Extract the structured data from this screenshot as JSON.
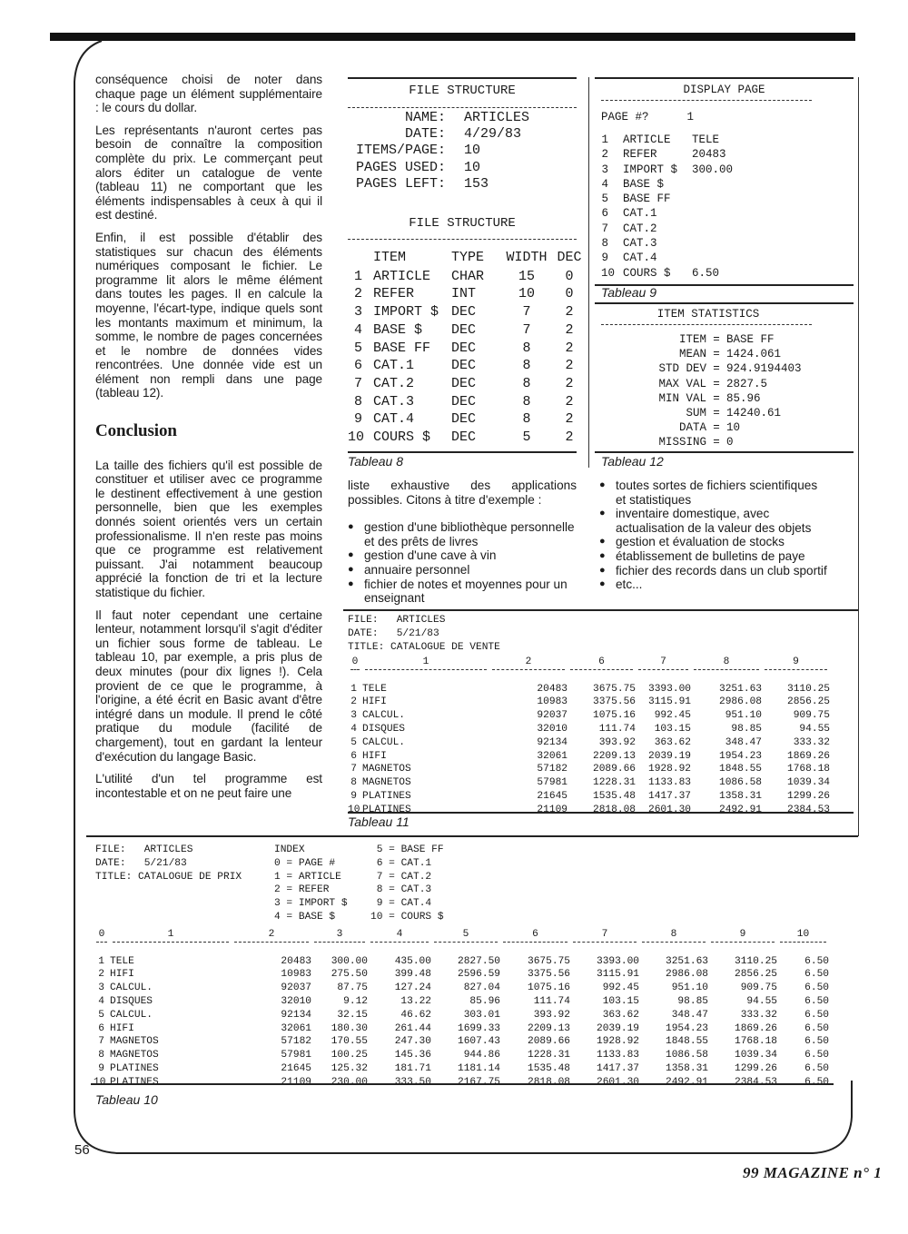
{
  "left_column": {
    "paragraphs_a": [
      "conséquence choisi de noter dans chaque page un élément supplémentaire : le cours du dollar.",
      "Les représentants n'auront certes pas besoin de connaître la composition complète du prix. Le commerçant peut alors éditer un catalogue de vente (tableau 11) ne comportant que les éléments indispensables à ceux à qui il est destiné.",
      "Enfin, il est possible d'établir des statistiques sur chacun des éléments numériques composant le fichier. Le programme lit alors le même élément dans toutes les pages. Il en calcule la moyenne, l'écart-type, indique quels sont les montants maximum et minimum, la somme, le nombre de pages concernées et le nombre de données vides rencontrées. Une donnée vide est un élément non rempli dans une page (tableau 12)."
    ],
    "heading": "Conclusion",
    "paragraphs_b": [
      "La taille des fichiers qu'il est possible de constituer et utiliser avec ce programme le destinent effectivement à une gestion personnelle, bien que les exemples donnés soient orientés vers un certain professionalisme. Il n'en reste pas moins que ce programme est relativement puissant. J'ai notamment beaucoup apprécié la fonction de tri et la lecture statistique du fichier.",
      "Il faut noter cependant une certaine lenteur, notamment lorsqu'il s'agit d'éditer un fichier sous forme de tableau. Le tableau 10, par exemple, a pris plus de deux minutes (pour dix lignes !). Cela provient de ce que le programme, à l'origine, a été écrit en Basic avant d'être intégré dans un module. Il prend le côté pratique du module (facilité de chargement), tout en gardant la lenteur d'exécution du langage Basic.",
      "L'utilité d'un tel programme est incontestable et on ne peut faire une"
    ]
  },
  "table8": {
    "title": "FILE STRUCTURE",
    "meta": [
      {
        "label": "NAME:",
        "value": "ARTICLES"
      },
      {
        "label": "DATE:",
        "value": "4/29/83"
      },
      {
        "label": "ITEMS/PAGE:",
        "value": "10"
      },
      {
        "label": "PAGES USED:",
        "value": "10"
      },
      {
        "label": "PAGES LEFT:",
        "value": "153"
      }
    ],
    "title2": "FILE STRUCTURE",
    "headers": [
      "",
      "ITEM",
      "TYPE",
      "WIDTH",
      "DEC"
    ],
    "rows": [
      [
        "1",
        "ARTICLE",
        "CHAR",
        "15",
        "0"
      ],
      [
        "2",
        "REFER",
        "INT",
        "10",
        "0"
      ],
      [
        "3",
        "IMPORT $",
        "DEC",
        "7",
        "2"
      ],
      [
        "4",
        "BASE $",
        "DEC",
        "7",
        "2"
      ],
      [
        "5",
        "BASE FF",
        "DEC",
        "8",
        "2"
      ],
      [
        "6",
        "CAT.1",
        "DEC",
        "8",
        "2"
      ],
      [
        "7",
        "CAT.2",
        "DEC",
        "8",
        "2"
      ],
      [
        "8",
        "CAT.3",
        "DEC",
        "8",
        "2"
      ],
      [
        "9",
        "CAT.4",
        "DEC",
        "8",
        "2"
      ],
      [
        "10",
        "COURS $",
        "DEC",
        "5",
        "2"
      ]
    ],
    "caption": "Tableau 8"
  },
  "table9": {
    "title": "DISPLAY PAGE",
    "page_label": "PAGE #?",
    "page_value": "1",
    "rows": [
      [
        "1",
        "ARTICLE",
        "TELE"
      ],
      [
        "2",
        "REFER",
        "20483"
      ],
      [
        "3",
        "IMPORT $",
        "300.00"
      ],
      [
        "4",
        "BASE $",
        ""
      ],
      [
        "5",
        "BASE FF",
        ""
      ],
      [
        "6",
        "CAT.1",
        ""
      ],
      [
        "7",
        "CAT.2",
        ""
      ],
      [
        "8",
        "CAT.3",
        ""
      ],
      [
        "9",
        "CAT.4",
        ""
      ],
      [
        "10",
        "COURS $",
        "6.50"
      ]
    ],
    "caption": "Tableau 9"
  },
  "table12": {
    "title": "ITEM STATISTICS",
    "rows": [
      [
        "ITEM",
        "BASE FF"
      ],
      [
        "MEAN",
        "1424.061"
      ],
      [
        "STD DEV",
        "924.9194403"
      ],
      [
        "MAX VAL",
        "2827.5"
      ],
      [
        "MIN VAL",
        "85.96"
      ],
      [
        "SUM",
        "14240.61"
      ],
      [
        "DATA",
        "10"
      ],
      [
        "MISSING",
        "0"
      ]
    ],
    "eq": "=",
    "caption": "Tableau 12"
  },
  "middle_text": {
    "intro": "liste exhaustive des applications possibles. Citons à titre d'exemple :",
    "bullets": [
      "gestion d'une bibliothèque personnelle et des prêts de livres",
      "gestion d'une cave à vin",
      "annuaire personnel",
      "fichier de notes et moyennes pour un enseignant"
    ]
  },
  "right_text": {
    "bullets": [
      "toutes sortes de fichiers scientifiques et statistiques",
      "inventaire domestique, avec actualisation de la valeur des objets",
      "gestion et évaluation de stocks",
      "établissement de bulletins de paye",
      "fichier des records dans un club sportif",
      "etc..."
    ]
  },
  "table11": {
    "meta": [
      "FILE:   ARTICLES",
      "DATE:   5/21/83",
      "TITLE: CATALOGUE DE VENTE"
    ],
    "headers": [
      "0",
      "1",
      "2",
      "6",
      "7",
      "8",
      "9"
    ],
    "rows": [
      [
        "1",
        "TELE",
        "20483",
        "3675.75",
        "3393.00",
        "3251.63",
        "3110.25"
      ],
      [
        "2",
        "HIFI",
        "10983",
        "3375.56",
        "3115.91",
        "2986.08",
        "2856.25"
      ],
      [
        "3",
        "CALCUL.",
        "92037",
        "1075.16",
        "992.45",
        "951.10",
        "909.75"
      ],
      [
        "4",
        "DISQUES",
        "32010",
        "111.74",
        "103.15",
        "98.85",
        "94.55"
      ],
      [
        "5",
        "CALCUL.",
        "92134",
        "393.92",
        "363.62",
        "348.47",
        "333.32"
      ],
      [
        "6",
        "HIFI",
        "32061",
        "2209.13",
        "2039.19",
        "1954.23",
        "1869.26"
      ],
      [
        "7",
        "MAGNETOS",
        "57182",
        "2089.66",
        "1928.92",
        "1848.55",
        "1768.18"
      ],
      [
        "8",
        "MAGNETOS",
        "57981",
        "1228.31",
        "1133.83",
        "1086.58",
        "1039.34"
      ],
      [
        "9",
        "PLATINES",
        "21645",
        "1535.48",
        "1417.37",
        "1358.31",
        "1299.26"
      ],
      [
        "10",
        "PLATINES",
        "21109",
        "2818.08",
        "2601.30",
        "2492.91",
        "2384.53"
      ]
    ],
    "caption": "Tableau 11"
  },
  "table10": {
    "meta": [
      "FILE:   ARTICLES",
      "DATE:   5/21/83",
      "TITLE: CATALOGUE DE PRIX"
    ],
    "index_a": [
      "INDEX",
      "0 = PAGE #",
      "1 = ARTICLE",
      "2 = REFER",
      "3 = IMPORT $",
      "4 = BASE $"
    ],
    "index_b": [
      " 5 = BASE FF",
      " 6 = CAT.1",
      " 7 = CAT.2",
      " 8 = CAT.3",
      " 9 = CAT.4",
      "10 = COURS $"
    ],
    "headers": [
      "0",
      "1",
      "2",
      "3",
      "4",
      "5",
      "6",
      "7",
      "8",
      "9",
      "10"
    ],
    "rows": [
      [
        "1",
        "TELE",
        "20483",
        "300.00",
        "435.00",
        "2827.50",
        "3675.75",
        "3393.00",
        "3251.63",
        "3110.25",
        "6.50"
      ],
      [
        "2",
        "HIFI",
        "10983",
        "275.50",
        "399.48",
        "2596.59",
        "3375.56",
        "3115.91",
        "2986.08",
        "2856.25",
        "6.50"
      ],
      [
        "3",
        "CALCUL.",
        "92037",
        "87.75",
        "127.24",
        "827.04",
        "1075.16",
        "992.45",
        "951.10",
        "909.75",
        "6.50"
      ],
      [
        "4",
        "DISQUES",
        "32010",
        "9.12",
        "13.22",
        "85.96",
        "111.74",
        "103.15",
        "98.85",
        "94.55",
        "6.50"
      ],
      [
        "5",
        "CALCUL.",
        "92134",
        "32.15",
        "46.62",
        "303.01",
        "393.92",
        "363.62",
        "348.47",
        "333.32",
        "6.50"
      ],
      [
        "6",
        "HIFI",
        "32061",
        "180.30",
        "261.44",
        "1699.33",
        "2209.13",
        "2039.19",
        "1954.23",
        "1869.26",
        "6.50"
      ],
      [
        "7",
        "MAGNETOS",
        "57182",
        "170.55",
        "247.30",
        "1607.43",
        "2089.66",
        "1928.92",
        "1848.55",
        "1768.18",
        "6.50"
      ],
      [
        "8",
        "MAGNETOS",
        "57981",
        "100.25",
        "145.36",
        "944.86",
        "1228.31",
        "1133.83",
        "1086.58",
        "1039.34",
        "6.50"
      ],
      [
        "9",
        "PLATINES",
        "21645",
        "125.32",
        "181.71",
        "1181.14",
        "1535.48",
        "1417.37",
        "1358.31",
        "1299.26",
        "6.50"
      ],
      [
        "10",
        "PLATINES",
        "21109",
        "230.00",
        "333.50",
        "2167.75",
        "2818.08",
        "2601.30",
        "2492.91",
        "2384.53",
        "6.50"
      ]
    ],
    "caption": "Tableau 10"
  },
  "footer": {
    "page_number": "56",
    "magazine": "99 MAGAZINE n° 1"
  }
}
